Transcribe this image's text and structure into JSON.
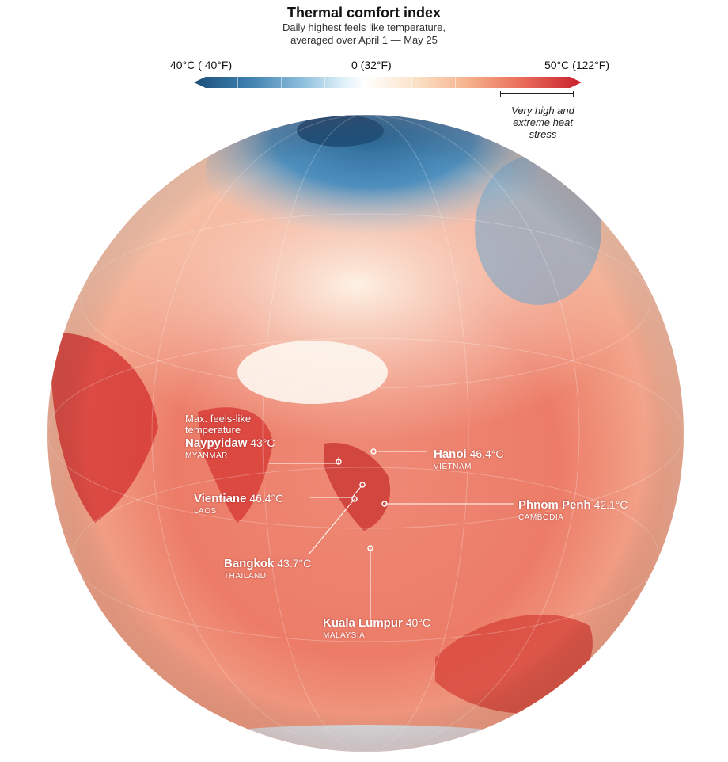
{
  "header": {
    "title": "Thermal comfort index",
    "subtitle_line1": "Daily highest feels like temperature,",
    "subtitle_line2": "averaged over April 1 — May 25"
  },
  "legend": {
    "low_label": "40°C ( 40°F)",
    "mid_label": "0 (32°F)",
    "high_label": "50°C (122°F)",
    "stress_line1": "Very high and",
    "stress_line2": "extreme heat",
    "stress_line3": "stress",
    "colors": {
      "cold": "#1c4f78",
      "neutral": "#ffffff",
      "hot": "#c81f2c"
    }
  },
  "annotation": {
    "line1": "Max. feels-like",
    "line2": "temperature"
  },
  "cities": [
    {
      "name": "Naypyidaw",
      "temp": "43°C",
      "country": "MYANMAR"
    },
    {
      "name": "Hanoi",
      "temp": "46.4°C",
      "country": "VIETNAM"
    },
    {
      "name": "Vientiane",
      "temp": "46.4°C",
      "country": "LAOS"
    },
    {
      "name": "Phnom Penh",
      "temp": "42.1°C",
      "country": "CAMBODIA"
    },
    {
      "name": "Bangkok",
      "temp": "43.7°C",
      "country": "THAILAND"
    },
    {
      "name": "Kuala Lumpur",
      "temp": "40°C",
      "country": "MALAYSIA"
    }
  ]
}
